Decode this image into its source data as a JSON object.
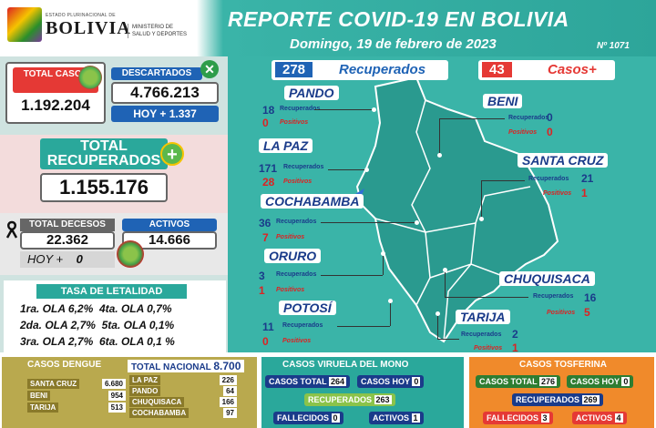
{
  "header": {
    "gov_small": "ESTADO PLURINACIONAL DE",
    "gov_big": "BOLIVIA",
    "ministry": "MINISTERIO DE SALUD Y DEPORTES",
    "title": "REPORTE COVID-19 EN BOLIVIA",
    "date": "Domingo, 19 de febrero de 2023",
    "report_number": "Nº 1071"
  },
  "summary": {
    "total_cases_label": "TOTAL CASOS",
    "total_cases": "1.192.204",
    "discarded_label": "DESCARTADOS",
    "discarded": "4.766.213",
    "today_label": "HOY +",
    "today_discarded": "1.337",
    "recovered_label": "TOTAL RECUPERADOS",
    "recovered": "1.155.176",
    "deaths_label": "TOTAL DECESOS",
    "deaths": "22.362",
    "deaths_today_label": "HOY +",
    "deaths_today": "0",
    "active_label": "ACTIVOS",
    "active": "14.666"
  },
  "lethality": {
    "title": "TASA DE LETALIDAD",
    "rows": [
      [
        "1ra. OLA 6,2%",
        "4ta. OLA 0,7%"
      ],
      [
        "2da. OLA 2,7%",
        "5ta. OLA 0,1%"
      ],
      [
        "3ra. OLA 2,7%",
        "6ta. OLA 0,1 %"
      ]
    ]
  },
  "day": {
    "recovered": "278",
    "recovered_label": "Recuperados",
    "cases": "43",
    "cases_label": "Casos+"
  },
  "labels": {
    "recuperados": "Recuperados",
    "positivos": "Positivos"
  },
  "departments": {
    "pando": {
      "name": "PANDO",
      "rec": "18",
      "pos": "0"
    },
    "beni": {
      "name": "BENI",
      "rec": "0",
      "pos": "0"
    },
    "lapaz": {
      "name": "LA PAZ",
      "rec": "171",
      "pos": "28"
    },
    "santacruz": {
      "name": "SANTA CRUZ",
      "rec": "21",
      "pos": "1"
    },
    "cochabamba": {
      "name": "COCHABAMBA",
      "rec": "36",
      "pos": "7"
    },
    "oruro": {
      "name": "ORURO",
      "rec": "3",
      "pos": "1"
    },
    "chuquisaca": {
      "name": "CHUQUISACA",
      "rec": "16",
      "pos": "5"
    },
    "potosi": {
      "name": "POTOSÍ",
      "rec": "11",
      "pos": "0"
    },
    "tarija": {
      "name": "TARIJA",
      "rec": "2",
      "pos": "1"
    }
  },
  "dengue": {
    "title": "CASOS DENGUE",
    "national_label": "TOTAL NACIONAL",
    "national": "8.700",
    "rows_left": [
      [
        "SANTA CRUZ",
        "6.680"
      ],
      [
        "BENI",
        "954"
      ],
      [
        "TARIJA",
        "513"
      ]
    ],
    "rows_right": [
      [
        "LA PAZ",
        "226"
      ],
      [
        "PANDO",
        "64"
      ],
      [
        "CHUQUISACA",
        "166"
      ],
      [
        "COCHABAMBA",
        "97"
      ]
    ]
  },
  "viruela": {
    "title": "CASOS VIRUELA DEL MONO",
    "total_label": "CASOS TOTAL",
    "total": "264",
    "today_label": "CASOS HOY",
    "today": "0",
    "recovered_label": "RECUPERADOS",
    "recovered": "263",
    "deaths_label": "FALLECIDOS",
    "deaths": "0",
    "active_label": "ACTIVOS",
    "active": "1"
  },
  "tosferina": {
    "title": "CASOS TOSFERINA",
    "total_label": "CASOS TOTAL",
    "total": "276",
    "today_label": "CASOS HOY",
    "today": "0",
    "recovered_label": "RECUPERADOS",
    "recovered": "269",
    "deaths_label": "FALLECIDOS",
    "deaths": "3",
    "active_label": "ACTIVOS",
    "active": "4"
  },
  "colors": {
    "teal": "#3ab4a8",
    "red": "#e53935",
    "blue": "#1f63b5",
    "navy": "#1a3b8a",
    "orange": "#f08a2b",
    "olive": "#b9a94e"
  },
  "icons": [
    "virus-icon",
    "close-circle-icon",
    "plus-circle-icon",
    "mourning-ribbon-icon"
  ]
}
